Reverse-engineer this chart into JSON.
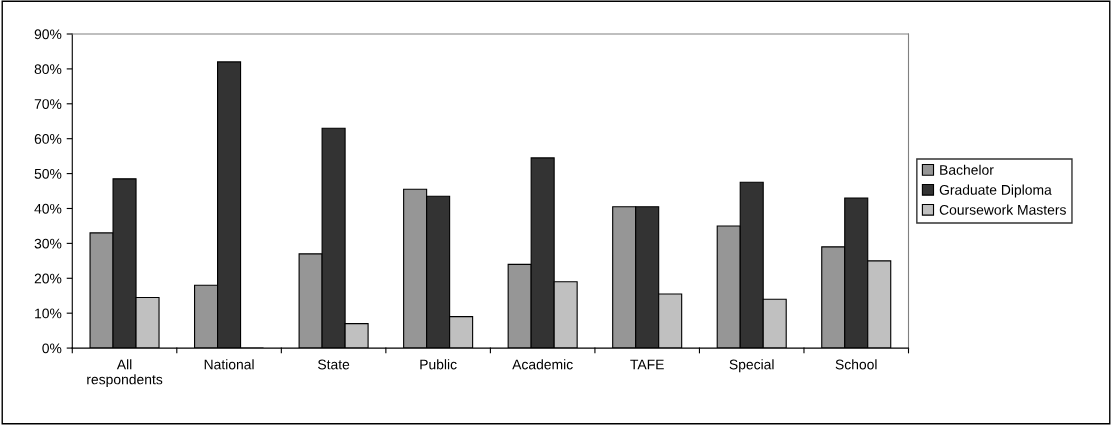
{
  "chart_data": {
    "type": "bar",
    "categories": [
      "All\nrespondents",
      "National",
      "State",
      "Public",
      "Academic",
      "TAFE",
      "Special",
      "School"
    ],
    "series": [
      {
        "name": "Bachelor",
        "color": "#969696",
        "values": [
          33,
          18,
          27,
          45.5,
          24,
          40.5,
          35,
          29
        ]
      },
      {
        "name": "Graduate Diploma",
        "color": "#333333",
        "values": [
          48.5,
          82,
          63,
          43.5,
          54.5,
          40.5,
          47.5,
          43
        ]
      },
      {
        "name": "Coursework Masters",
        "color": "#c0c0c0",
        "values": [
          14.5,
          0,
          7,
          9,
          19,
          15.5,
          14,
          25
        ]
      }
    ],
    "ylim": [
      0,
      90
    ],
    "yticks": [
      {
        "value": 0,
        "label": "0%"
      },
      {
        "value": 10,
        "label": "10%"
      },
      {
        "value": 20,
        "label": "20%"
      },
      {
        "value": 30,
        "label": "30%"
      },
      {
        "value": 40,
        "label": "40%"
      },
      {
        "value": 50,
        "label": "50%"
      },
      {
        "value": 60,
        "label": "60%"
      },
      {
        "value": 70,
        "label": "70%"
      },
      {
        "value": 80,
        "label": "80%"
      },
      {
        "value": 90,
        "label": "90%"
      }
    ],
    "legend": "right",
    "grid": false
  }
}
